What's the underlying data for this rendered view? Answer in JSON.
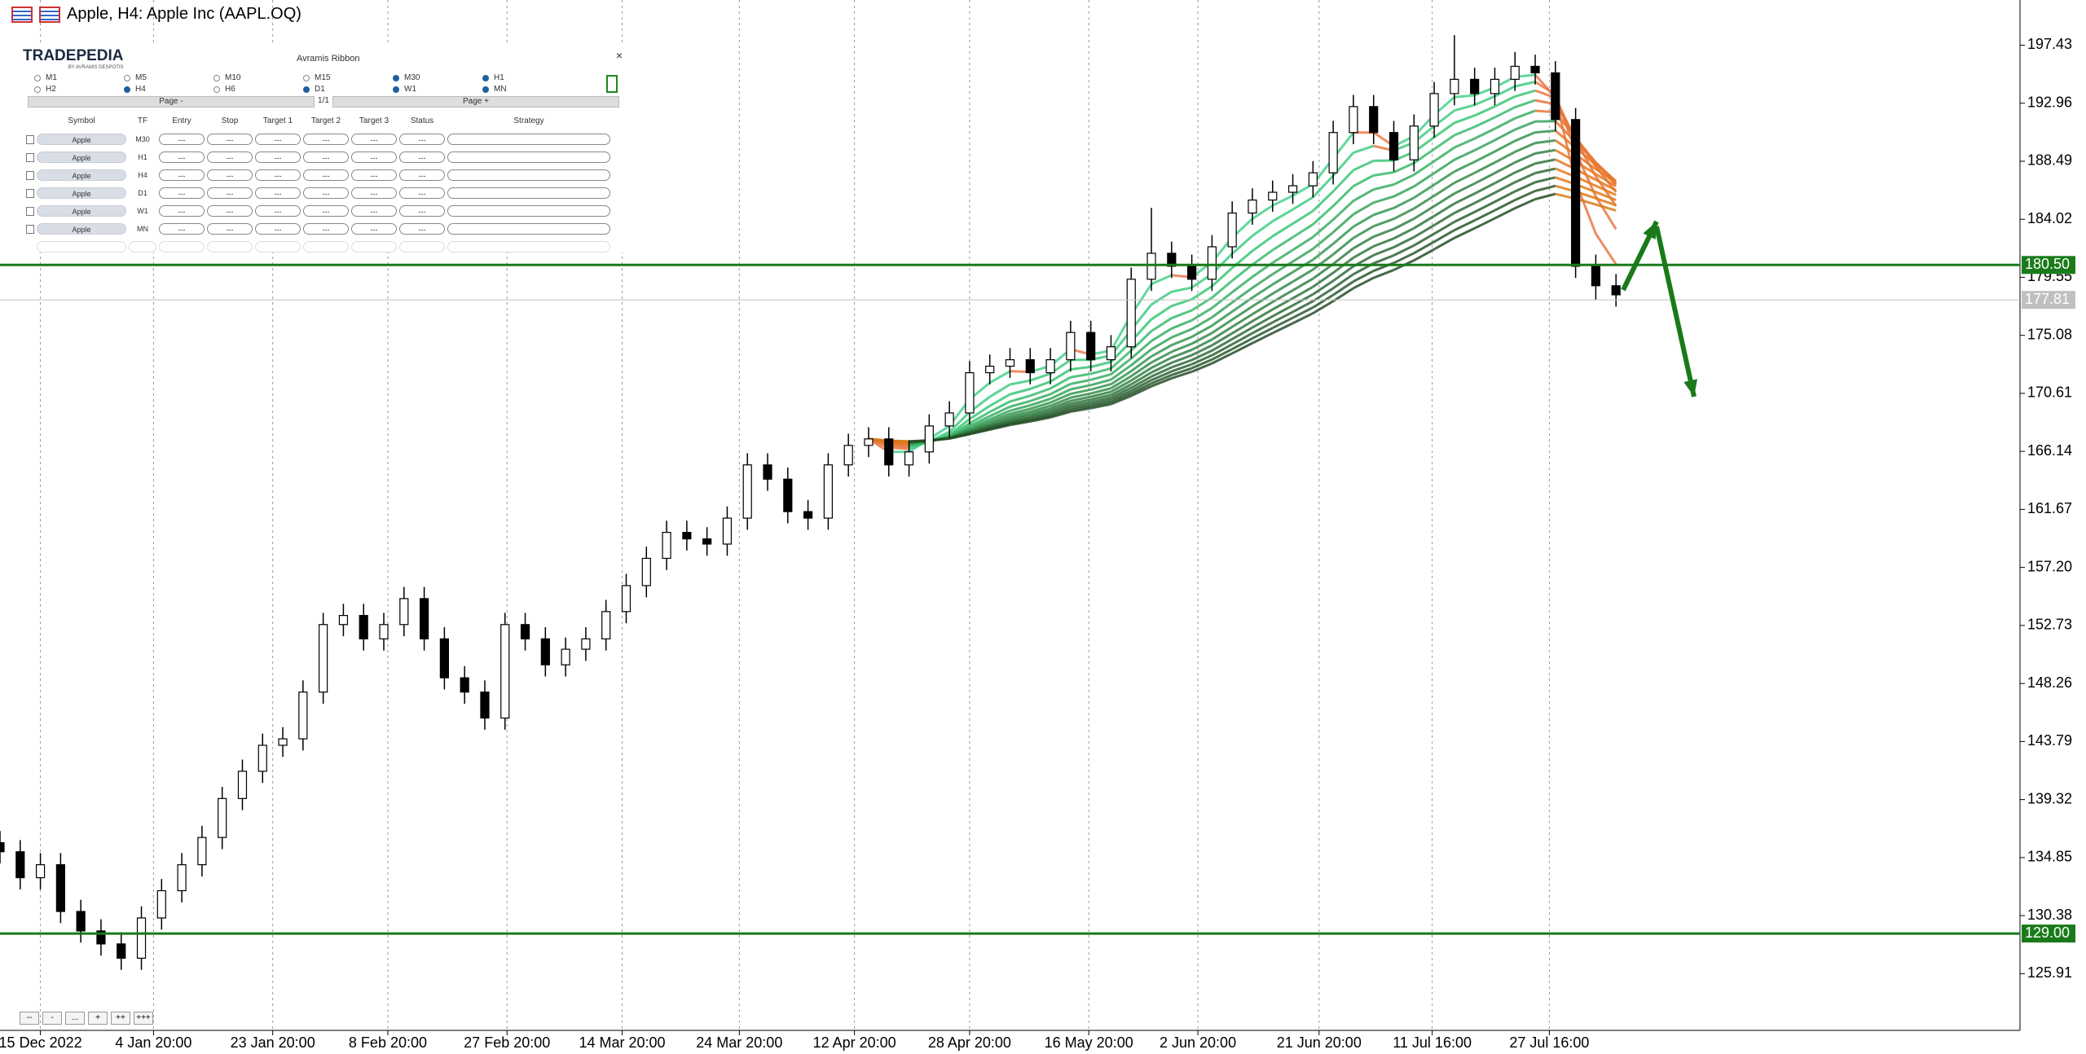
{
  "window": {
    "title": "Apple, H4:  Apple Inc (AAPL.OQ)"
  },
  "panel": {
    "logo": "TRADEPEDIA",
    "logo_sub": "BY AVRAMIS DESPOTIS",
    "title": "Avramis Ribbon",
    "close": "×",
    "timeframes": [
      {
        "label": "M1",
        "checked": false
      },
      {
        "label": "M5",
        "checked": false
      },
      {
        "label": "M10",
        "checked": false
      },
      {
        "label": "M15",
        "checked": false
      },
      {
        "label": "M30",
        "checked": true
      },
      {
        "label": "H1",
        "checked": true
      },
      {
        "label": "H2",
        "checked": false
      },
      {
        "label": "H4",
        "checked": true
      },
      {
        "label": "H6",
        "checked": false
      },
      {
        "label": "D1",
        "checked": true
      },
      {
        "label": "W1",
        "checked": true
      },
      {
        "label": "MN",
        "checked": true
      }
    ],
    "page_prev": "Page -",
    "page_info": "1/1",
    "page_next": "Page +",
    "columns": [
      "Symbol",
      "TF",
      "Entry",
      "Stop",
      "Target 1",
      "Target 2",
      "Target 3",
      "Status",
      "Strategy"
    ],
    "rows": [
      [
        "Apple",
        "M30",
        "---",
        "---",
        "---",
        "---",
        "---",
        "---"
      ],
      [
        "Apple",
        "H1",
        "---",
        "---",
        "---",
        "---",
        "---",
        "---"
      ],
      [
        "Apple",
        "H4",
        "---",
        "---",
        "---",
        "---",
        "---",
        "---"
      ],
      [
        "Apple",
        "D1",
        "---",
        "---",
        "---",
        "---",
        "---",
        "---"
      ],
      [
        "Apple",
        "W1",
        "---",
        "---",
        "---",
        "---",
        "---",
        "---"
      ],
      [
        "Apple",
        "MN",
        "---",
        "---",
        "---",
        "---",
        "---",
        "---"
      ]
    ]
  },
  "zoom_buttons": [
    "--",
    "-",
    "...",
    "+",
    "++",
    "+++"
  ],
  "chart_data": {
    "type": "candlestick",
    "open": [
      136.0,
      135.3,
      133.3,
      134.3,
      130.7,
      129.2,
      128.2,
      127.1,
      130.2,
      132.3,
      134.3,
      136.4,
      139.4,
      141.5,
      143.5,
      144.0,
      147.6,
      152.8,
      153.5,
      151.7,
      152.8,
      154.8,
      151.7,
      148.7,
      147.6,
      145.6,
      152.8,
      151.7,
      149.7,
      150.9,
      151.7,
      153.8,
      155.8,
      157.9,
      159.9,
      159.4,
      159.0,
      161.0,
      165.1,
      164.0,
      161.5,
      161.0,
      165.1,
      166.6,
      167.1,
      165.1,
      166.1,
      168.1,
      169.1,
      172.2,
      172.7,
      173.2,
      172.2,
      173.2,
      175.3,
      173.2,
      174.2,
      179.4,
      181.4,
      180.4,
      179.4,
      181.9,
      184.5,
      185.5,
      186.1,
      186.6,
      187.6,
      190.7,
      192.7,
      190.7,
      188.6,
      191.2,
      193.7,
      194.8,
      193.7,
      194.8,
      195.8,
      195.3,
      191.7,
      180.4,
      178.9
    ],
    "high": [
      136.9,
      136.2,
      135.2,
      135.2,
      131.6,
      130.1,
      129.1,
      131.1,
      133.2,
      135.2,
      137.3,
      140.3,
      142.4,
      144.4,
      144.9,
      148.5,
      153.7,
      154.4,
      154.4,
      153.7,
      155.7,
      155.7,
      152.6,
      149.6,
      148.5,
      153.7,
      153.7,
      152.6,
      151.8,
      152.6,
      154.7,
      156.7,
      158.8,
      160.8,
      160.8,
      160.3,
      161.9,
      166.0,
      166.0,
      164.9,
      162.4,
      166.0,
      167.5,
      168.0,
      168.0,
      167.0,
      169.0,
      170.0,
      173.1,
      173.6,
      174.1,
      174.1,
      174.1,
      176.2,
      176.2,
      175.1,
      180.3,
      184.9,
      182.3,
      181.3,
      182.8,
      185.4,
      186.4,
      187.0,
      187.5,
      188.5,
      191.6,
      193.6,
      193.6,
      191.6,
      192.1,
      194.6,
      198.2,
      195.7,
      195.7,
      196.9,
      196.7,
      196.2,
      192.6,
      181.3,
      179.8
    ],
    "low": [
      134.4,
      132.4,
      132.4,
      129.8,
      128.3,
      127.3,
      126.2,
      126.2,
      129.3,
      131.4,
      133.4,
      135.5,
      138.5,
      140.6,
      142.6,
      143.1,
      146.7,
      151.9,
      150.8,
      150.8,
      151.9,
      150.8,
      147.8,
      146.7,
      144.7,
      144.7,
      150.8,
      148.8,
      148.8,
      150.0,
      150.8,
      152.9,
      154.9,
      157.0,
      158.5,
      158.1,
      158.1,
      160.1,
      163.1,
      160.6,
      160.1,
      160.1,
      164.2,
      165.7,
      164.2,
      164.2,
      165.2,
      167.2,
      168.2,
      171.3,
      171.8,
      171.3,
      171.3,
      172.3,
      172.3,
      172.3,
      173.3,
      178.5,
      179.5,
      178.5,
      178.5,
      181.0,
      183.6,
      184.6,
      185.2,
      185.7,
      186.7,
      189.8,
      189.8,
      187.7,
      187.7,
      190.3,
      192.8,
      192.8,
      192.8,
      193.9,
      194.4,
      190.8,
      179.5,
      177.8,
      177.3
    ],
    "close": [
      135.3,
      133.3,
      134.3,
      130.7,
      129.2,
      128.2,
      127.1,
      130.2,
      132.3,
      134.3,
      136.4,
      139.4,
      141.5,
      143.5,
      144.0,
      147.6,
      152.8,
      153.5,
      151.7,
      152.8,
      154.8,
      151.7,
      148.7,
      147.6,
      145.6,
      152.8,
      151.7,
      149.7,
      150.9,
      151.7,
      153.8,
      155.8,
      157.9,
      159.9,
      159.4,
      159.0,
      161.0,
      165.1,
      164.0,
      161.5,
      161.0,
      165.1,
      166.6,
      167.1,
      165.1,
      166.1,
      168.1,
      169.1,
      172.2,
      172.7,
      173.2,
      172.2,
      173.2,
      175.3,
      173.2,
      174.2,
      179.4,
      181.4,
      180.4,
      179.4,
      181.9,
      184.5,
      185.5,
      186.1,
      186.6,
      187.6,
      190.7,
      192.7,
      190.7,
      188.6,
      191.2,
      193.7,
      194.8,
      193.7,
      194.8,
      195.8,
      195.3,
      191.7,
      180.4,
      178.9,
      178.2
    ],
    "xlim": [
      0,
      100
    ],
    "xticks": [
      {
        "value": 2,
        "label": "15 Dec 2022"
      },
      {
        "value": 7.6,
        "label": "4 Jan 20:00"
      },
      {
        "value": 13.5,
        "label": "23 Jan 20:00"
      },
      {
        "value": 19.2,
        "label": "8 Feb 20:00"
      },
      {
        "value": 25.1,
        "label": "27 Feb 20:00"
      },
      {
        "value": 30.8,
        "label": "14 Mar 20:00"
      },
      {
        "value": 36.6,
        "label": "24 Mar 20:00"
      },
      {
        "value": 42.3,
        "label": "12 Apr 20:00"
      },
      {
        "value": 48,
        "label": "28 Apr 20:00"
      },
      {
        "value": 53.9,
        "label": "16 May 20:00"
      },
      {
        "value": 59.3,
        "label": "2 Jun 20:00"
      },
      {
        "value": 65.3,
        "label": "21 Jun 20:00"
      },
      {
        "value": 70.9,
        "label": "11 Jul 16:00"
      },
      {
        "value": 76.7,
        "label": "27 Jul 16:00"
      }
    ],
    "ylim": [
      121.54,
      200.91
    ],
    "yticks": [
      197.43,
      192.96,
      188.49,
      184.02,
      179.55,
      175.08,
      170.61,
      166.14,
      161.67,
      {
        "value": 157.2,
        "label": "157.20"
      },
      152.73,
      148.26,
      143.79,
      139.32,
      134.85,
      130.38,
      125.91
    ],
    "hlines": [
      {
        "value": 180.5,
        "label": "180.50",
        "color": "#1a7a1a"
      },
      {
        "value": 129,
        "label": "129.00",
        "color": "#1a7a1a"
      }
    ],
    "current_price": {
      "value": 177.81,
      "label": "177.81",
      "color": "#c0c0c0"
    },
    "grid": true,
    "up_color": "#ffffff",
    "down_color": "#000000"
  }
}
